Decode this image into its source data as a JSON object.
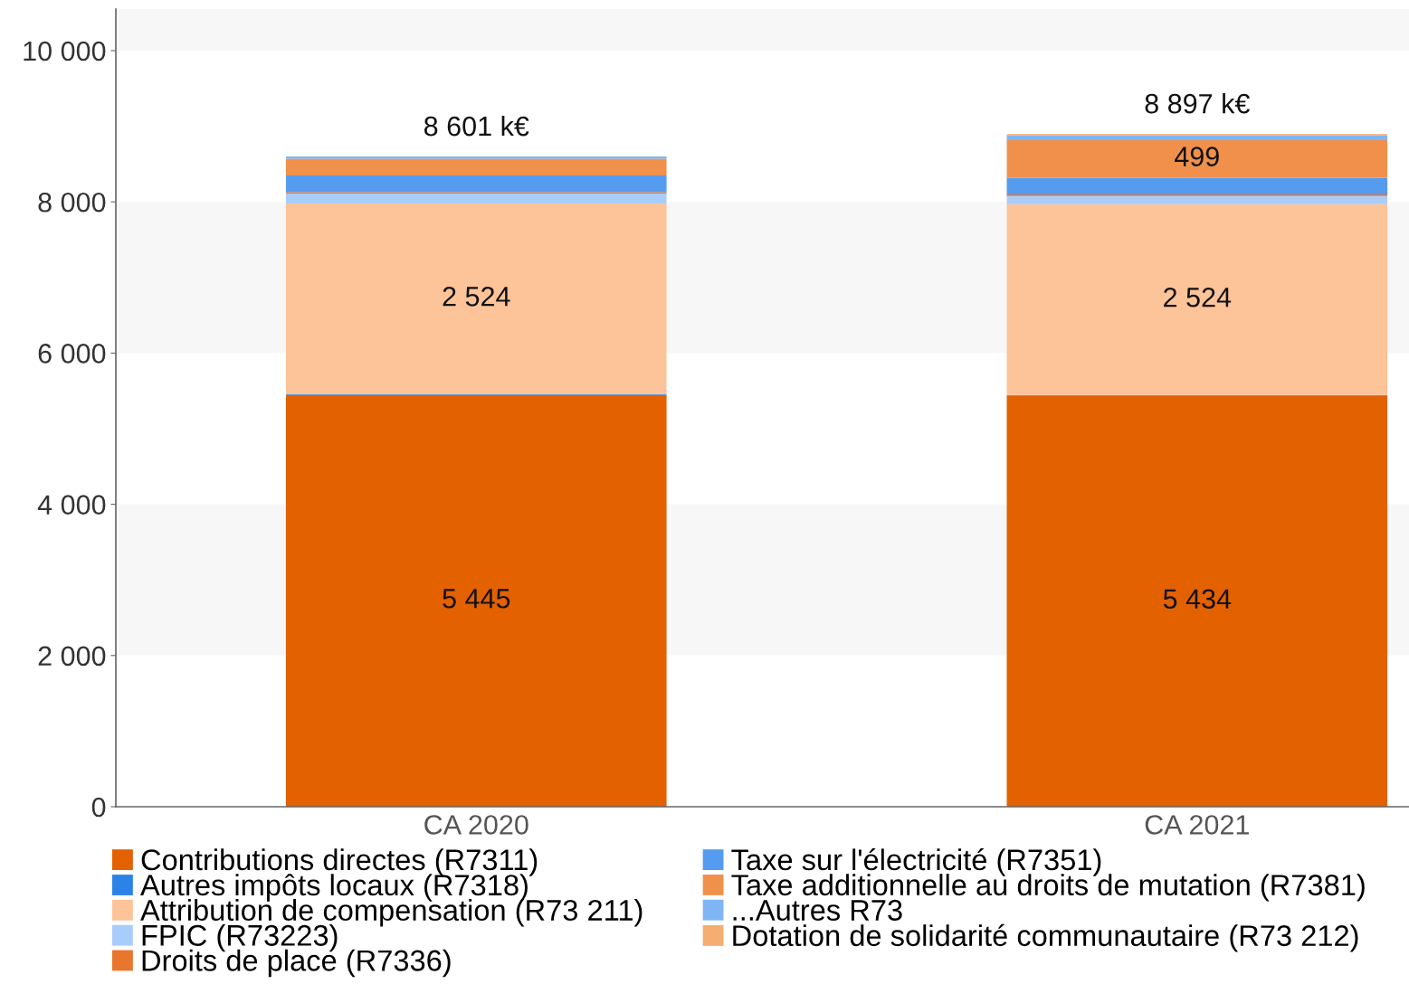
{
  "chart_data": {
    "type": "bar",
    "stacked": true,
    "categories": [
      "CA 2020",
      "CA 2021"
    ],
    "series": [
      {
        "name": "Contributions directes (R7311)",
        "color": "#e46100",
        "values": [
          5445,
          5434
        ],
        "value_labels": [
          "5 445",
          "5 434"
        ]
      },
      {
        "name": "Autres impôts locaux (R7318)",
        "color": "#2d82e8",
        "values": [
          10,
          10
        ]
      },
      {
        "name": "Attribution de compensation (R73 211)",
        "color": "#fdc399",
        "values": [
          2524,
          2524
        ],
        "value_labels": [
          "2 524",
          "2 524"
        ]
      },
      {
        "name": "FPIC (R73223)",
        "color": "#a9cdfb",
        "values": [
          130,
          110
        ]
      },
      {
        "name": "Droits de place (R7336)",
        "color": "#e8762d",
        "values": [
          20,
          20
        ]
      },
      {
        "name": "Taxe sur l'électricité (R7351)",
        "color": "#559bf0",
        "values": [
          220,
          220
        ]
      },
      {
        "name": "Taxe additionnelle au droits de mutation (R7381)",
        "color": "#f0904a",
        "values": [
          220,
          499
        ],
        "value_labels": [
          null,
          "499"
        ]
      },
      {
        "name": "...Autres R73",
        "color": "#80b5f3",
        "values": [
          30,
          60
        ]
      },
      {
        "name": "Dotation de solidarité communautaire (R73 212)",
        "color": "#f6ad72",
        "values": [
          null,
          20
        ]
      }
    ],
    "totals": [
      "8 601 k€",
      "8 897 k€"
    ],
    "ylim": [
      0,
      10550
    ],
    "yticks": [
      0,
      {
        "value": 2000,
        "label": "2 000"
      },
      {
        "value": 4000,
        "label": "4 000"
      },
      {
        "value": 6000,
        "label": "6 000"
      },
      {
        "value": 8000,
        "label": "8 000"
      },
      {
        "value": 10000,
        "label": "10 000"
      }
    ],
    "bands": [
      {
        "axis": "y",
        "from": 2000,
        "to": 4000,
        "color": "#f7f7f7"
      },
      {
        "axis": "y",
        "from": 6000,
        "to": 8000,
        "color": "#f7f7f7"
      },
      {
        "axis": "y",
        "from": 10000,
        "to": 10550,
        "color": "#f7f7f7"
      }
    ],
    "legend": "bottom"
  }
}
